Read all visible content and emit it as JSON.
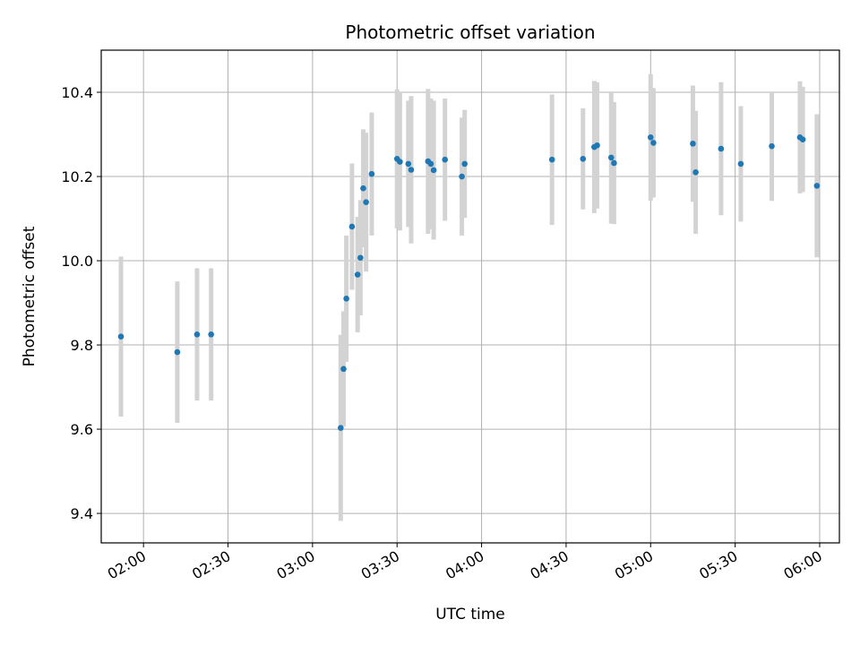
{
  "chart_data": {
    "type": "scatter",
    "title": "Photometric offset variation",
    "xlabel": "UTC time",
    "ylabel": "Photometric offset",
    "x_unit": "UTC time (HH:MM)",
    "xlim": [
      "01:45",
      "06:07"
    ],
    "ylim": [
      9.33,
      10.5
    ],
    "xticks": [
      "02:00",
      "02:30",
      "03:00",
      "03:30",
      "04:00",
      "04:30",
      "05:00",
      "05:30",
      "06:00"
    ],
    "yticks": [
      9.4,
      9.6,
      9.8,
      10.0,
      10.2,
      10.4
    ],
    "grid": true,
    "marker_color": "#1f77b4",
    "errorbar_color": "#d3d3d3",
    "points": [
      {
        "x": "01:52",
        "y": 9.82,
        "err": 0.19
      },
      {
        "x": "02:12",
        "y": 9.783,
        "err": 0.168
      },
      {
        "x": "02:19",
        "y": 9.825,
        "err": 0.157
      },
      {
        "x": "02:24",
        "y": 9.825,
        "err": 0.157
      },
      {
        "x": "03:10",
        "y": 9.603,
        "err": 0.221
      },
      {
        "x": "03:11",
        "y": 9.743,
        "err": 0.137
      },
      {
        "x": "03:12",
        "y": 9.91,
        "err": 0.15
      },
      {
        "x": "03:14",
        "y": 10.081,
        "err": 0.15
      },
      {
        "x": "03:16",
        "y": 9.967,
        "err": 0.137
      },
      {
        "x": "03:17",
        "y": 10.007,
        "err": 0.137
      },
      {
        "x": "03:18",
        "y": 10.172,
        "err": 0.14
      },
      {
        "x": "03:19",
        "y": 10.139,
        "err": 0.165
      },
      {
        "x": "03:21",
        "y": 10.206,
        "err": 0.146
      },
      {
        "x": "03:30",
        "y": 10.242,
        "err": 0.165
      },
      {
        "x": "03:31",
        "y": 10.235,
        "err": 0.163
      },
      {
        "x": "03:34",
        "y": 10.23,
        "err": 0.15
      },
      {
        "x": "03:35",
        "y": 10.216,
        "err": 0.175
      },
      {
        "x": "03:41",
        "y": 10.236,
        "err": 0.172
      },
      {
        "x": "03:42",
        "y": 10.23,
        "err": 0.155
      },
      {
        "x": "03:43",
        "y": 10.215,
        "err": 0.165
      },
      {
        "x": "03:47",
        "y": 10.24,
        "err": 0.145
      },
      {
        "x": "03:53",
        "y": 10.2,
        "err": 0.14
      },
      {
        "x": "03:54",
        "y": 10.23,
        "err": 0.128
      },
      {
        "x": "04:25",
        "y": 10.24,
        "err": 0.155
      },
      {
        "x": "04:36",
        "y": 10.242,
        "err": 0.12
      },
      {
        "x": "04:40",
        "y": 10.27,
        "err": 0.157
      },
      {
        "x": "04:41",
        "y": 10.274,
        "err": 0.15
      },
      {
        "x": "04:46",
        "y": 10.245,
        "err": 0.157
      },
      {
        "x": "04:47",
        "y": 10.232,
        "err": 0.145
      },
      {
        "x": "05:00",
        "y": 10.293,
        "err": 0.15
      },
      {
        "x": "05:01",
        "y": 10.28,
        "err": 0.13
      },
      {
        "x": "05:15",
        "y": 10.278,
        "err": 0.138
      },
      {
        "x": "05:16",
        "y": 10.21,
        "err": 0.146
      },
      {
        "x": "05:25",
        "y": 10.266,
        "err": 0.158
      },
      {
        "x": "05:32",
        "y": 10.23,
        "err": 0.137
      },
      {
        "x": "05:43",
        "y": 10.272,
        "err": 0.13
      },
      {
        "x": "05:53",
        "y": 10.293,
        "err": 0.133
      },
      {
        "x": "05:54",
        "y": 10.288,
        "err": 0.125
      },
      {
        "x": "05:59",
        "y": 10.178,
        "err": 0.17
      }
    ]
  }
}
